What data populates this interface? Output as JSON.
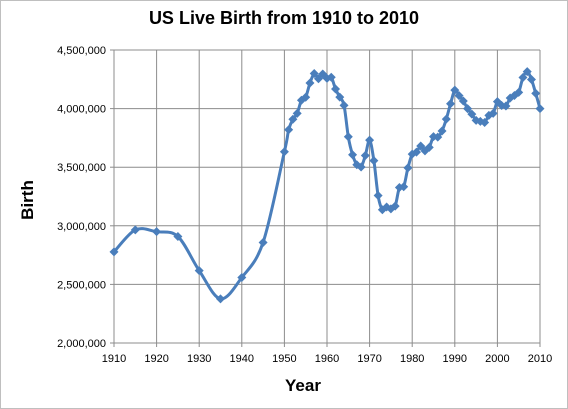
{
  "chart_data": {
    "type": "line",
    "title": "US Live Birth from 1910 to 2010",
    "xlabel": "Year",
    "ylabel": "Birth",
    "xlim": [
      1910,
      2010
    ],
    "ylim": [
      2000000,
      4500000
    ],
    "x_ticks": [
      "1910",
      "1920",
      "1930",
      "1940",
      "1950",
      "1960",
      "1970",
      "1980",
      "1990",
      "2000",
      "2010"
    ],
    "y_ticks": [
      "2,000,000",
      "2,500,000",
      "3,000,000",
      "3,500,000",
      "4,000,000",
      "4,500,000"
    ],
    "x_tick_values": [
      1910,
      1920,
      1930,
      1940,
      1950,
      1960,
      1970,
      1980,
      1990,
      2000,
      2010
    ],
    "y_tick_values": [
      2000000,
      2500000,
      3000000,
      3500000,
      4000000,
      4500000
    ],
    "grid": true,
    "legend": "none",
    "series_color": "#4a7ebb",
    "series": [
      {
        "x": [
          1910,
          1915,
          1920,
          1925,
          1930,
          1935,
          1940,
          1945,
          1950,
          1951,
          1952,
          1953,
          1954,
          1955,
          1956,
          1957,
          1958,
          1959,
          1960,
          1961,
          1962,
          1963,
          1964,
          1965,
          1966,
          1967,
          1968,
          1969,
          1970,
          1971,
          1972,
          1973,
          1974,
          1975,
          1976,
          1977,
          1978,
          1979,
          1980,
          1981,
          1982,
          1983,
          1984,
          1985,
          1986,
          1987,
          1988,
          1989,
          1990,
          1991,
          1992,
          1993,
          1994,
          1995,
          1996,
          1997,
          1998,
          1999,
          2000,
          2001,
          2002,
          2003,
          2004,
          2005,
          2006,
          2007,
          2008,
          2009,
          2010
        ],
        "y": [
          2777000,
          2965000,
          2950000,
          2909000,
          2618000,
          2377000,
          2559000,
          2858000,
          3632000,
          3820000,
          3909000,
          3959000,
          4071000,
          4097000,
          4218000,
          4300000,
          4255000,
          4295000,
          4258000,
          4268000,
          4167000,
          4098000,
          4027000,
          3760000,
          3606000,
          3521000,
          3502000,
          3600000,
          3731000,
          3556000,
          3258000,
          3137000,
          3160000,
          3144000,
          3168000,
          3327000,
          3333000,
          3494000,
          3612000,
          3629000,
          3681000,
          3639000,
          3669000,
          3761000,
          3757000,
          3809000,
          3910000,
          4041000,
          4158000,
          4111000,
          4065000,
          4000000,
          3953000,
          3900000,
          3891000,
          3881000,
          3942000,
          3959000,
          4059000,
          4026000,
          4022000,
          4090000,
          4112000,
          4138000,
          4265000,
          4316000,
          4248000,
          4130000,
          4000000
        ]
      }
    ]
  }
}
